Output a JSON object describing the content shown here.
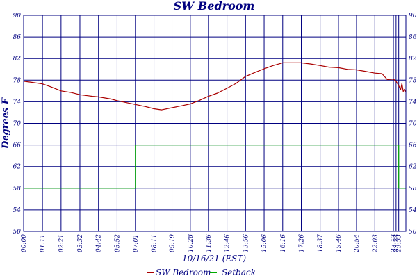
{
  "chart_data": {
    "type": "line",
    "title": "SW Bedroom",
    "xlabel": "10/16/21 (EST)",
    "ylabel": "Degrees F",
    "xlim": [
      0,
      1440
    ],
    "ylim": [
      50,
      90
    ],
    "y_ticks": [
      50,
      54,
      58,
      62,
      66,
      70,
      74,
      78,
      82,
      86,
      90
    ],
    "x_ticks": [
      {
        "label": "00:00",
        "minute": 0
      },
      {
        "label": "01:11",
        "minute": 71
      },
      {
        "label": "02:21",
        "minute": 141
      },
      {
        "label": "03:32",
        "minute": 212
      },
      {
        "label": "04:42",
        "minute": 282
      },
      {
        "label": "05:52",
        "minute": 352
      },
      {
        "label": "07:01",
        "minute": 421
      },
      {
        "label": "08:11",
        "minute": 491
      },
      {
        "label": "09:19",
        "minute": 559
      },
      {
        "label": "10:28",
        "minute": 628
      },
      {
        "label": "11:36",
        "minute": 696
      },
      {
        "label": "12:46",
        "minute": 766
      },
      {
        "label": "13:56",
        "minute": 836
      },
      {
        "label": "15:06",
        "minute": 906
      },
      {
        "label": "16:16",
        "minute": 976
      },
      {
        "label": "17:26",
        "minute": 1046
      },
      {
        "label": "18:37",
        "minute": 1117
      },
      {
        "label": "19:46",
        "minute": 1186
      },
      {
        "label": "20:54",
        "minute": 1254
      },
      {
        "label": "22:03",
        "minute": 1323
      },
      {
        "label": "23:13",
        "minute": 1393
      },
      {
        "label": "23:23",
        "minute": 1403
      },
      {
        "label": "23:33",
        "minute": 1413
      }
    ],
    "grid": true,
    "legend_position": "bottom-center",
    "series": [
      {
        "name": "SW Bedroom",
        "color": "#aa0000",
        "x": [
          0,
          30,
          71,
          100,
          141,
          180,
          212,
          260,
          282,
          330,
          352,
          400,
          421,
          460,
          491,
          520,
          559,
          600,
          628,
          660,
          696,
          730,
          766,
          800,
          836,
          870,
          906,
          940,
          976,
          1000,
          1046,
          1080,
          1117,
          1150,
          1186,
          1220,
          1254,
          1290,
          1323,
          1350,
          1370,
          1393,
          1403,
          1413,
          1420,
          1425,
          1430,
          1435,
          1440
        ],
        "y": [
          77.8,
          77.6,
          77.3,
          76.8,
          76.0,
          75.7,
          75.3,
          75.0,
          74.9,
          74.5,
          74.2,
          73.7,
          73.5,
          73.1,
          72.7,
          72.5,
          72.9,
          73.3,
          73.6,
          74.2,
          75.0,
          75.6,
          76.5,
          77.4,
          78.7,
          79.4,
          80.1,
          80.7,
          81.2,
          81.2,
          81.2,
          81.0,
          80.7,
          80.4,
          80.3,
          80.0,
          79.9,
          79.6,
          79.3,
          79.2,
          78.1,
          78.2,
          77.8,
          77.0,
          76.2,
          77.4,
          75.9,
          76.3,
          75.8
        ]
      },
      {
        "name": "Setback",
        "color": "#00aa00",
        "x": [
          0,
          421,
          421,
          1413,
          1413,
          1440
        ],
        "y": [
          58,
          58,
          66,
          66,
          58,
          58
        ]
      }
    ]
  }
}
